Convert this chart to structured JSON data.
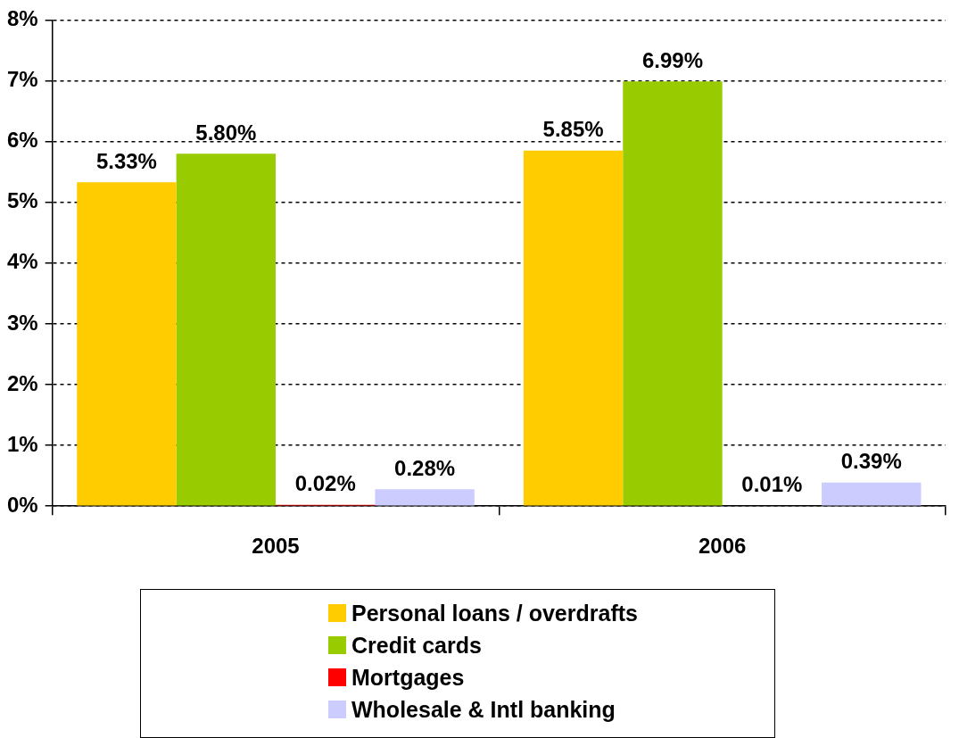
{
  "chart_data": {
    "type": "bar",
    "categories": [
      "2005",
      "2006"
    ],
    "series": [
      {
        "name": "Personal loans / overdrafts",
        "color": "#ffcc00",
        "values": [
          5.33,
          5.85
        ],
        "value_labels": [
          "5.33%",
          "5.85%"
        ]
      },
      {
        "name": "Credit cards",
        "color": "#99cc00",
        "values": [
          5.8,
          6.99
        ],
        "value_labels": [
          "5.80%",
          "6.99%"
        ]
      },
      {
        "name": "Mortgages",
        "color": "#ff0000",
        "values": [
          0.02,
          0.01
        ],
        "value_labels": [
          "0.02%",
          "0.01%"
        ]
      },
      {
        "name": "Wholesale & Intl banking",
        "color": "#ccccff",
        "values": [
          0.28,
          0.39
        ],
        "value_labels": [
          "0.28%",
          "0.39%"
        ]
      }
    ],
    "ylim": [
      0,
      8
    ],
    "yticks": [
      {
        "value": 0,
        "label": "0%"
      },
      {
        "value": 1,
        "label": "1%"
      },
      {
        "value": 2,
        "label": "2%"
      },
      {
        "value": 3,
        "label": "3%"
      },
      {
        "value": 4,
        "label": "4%"
      },
      {
        "value": 5,
        "label": "5%"
      },
      {
        "value": 6,
        "label": "6%"
      },
      {
        "value": 7,
        "label": "7%"
      },
      {
        "value": 8,
        "label": "8%"
      }
    ],
    "grid": "y",
    "legend": "bottom"
  }
}
